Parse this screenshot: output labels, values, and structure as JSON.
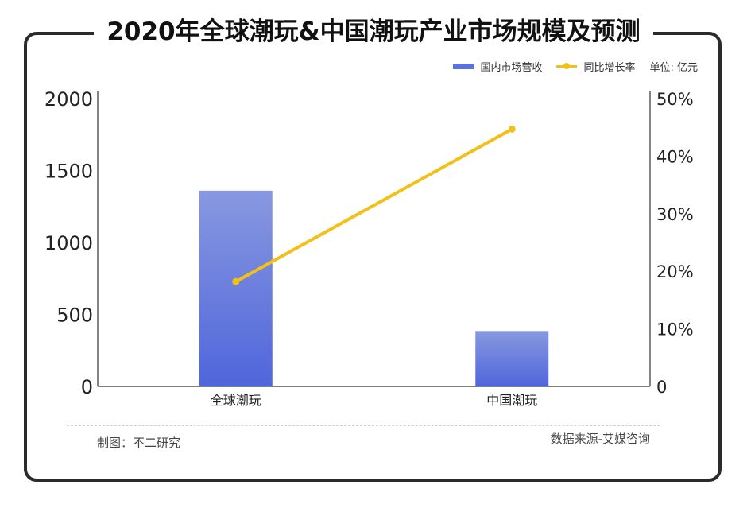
{
  "title": "2020年全球潮玩&中国潮玩产业市场规模及预测",
  "legend": {
    "bar_label": "国内市场营收",
    "line_label": "同比增长率",
    "unit": "单位: 亿元"
  },
  "footer": {
    "left": "制图：不二研究",
    "right": "数据来源-艾媒咨询"
  },
  "colors": {
    "bar_top": "#8898e0",
    "bar_bottom": "#4f66db",
    "line": "#f2c019",
    "axis": "#333333"
  },
  "chart_data": {
    "type": "bar",
    "categories": [
      "全球潮玩",
      "中国潮玩"
    ],
    "series": [
      {
        "name": "国内市场营收",
        "type": "bar",
        "axis": "left",
        "values": [
          1360,
          385
        ]
      },
      {
        "name": "同比增长率",
        "type": "line",
        "axis": "right",
        "values": [
          18.2,
          44.7
        ]
      }
    ],
    "y_left": {
      "ylim": [
        0,
        2000
      ],
      "ticks": [
        "0",
        "500",
        "1000",
        "1500",
        "2000"
      ]
    },
    "y_right": {
      "ylim": [
        0,
        50
      ],
      "ticks": [
        "0",
        "10%",
        "20%",
        "30%",
        "40%",
        "50%"
      ]
    },
    "grid": false,
    "legend_position": "top-right"
  }
}
